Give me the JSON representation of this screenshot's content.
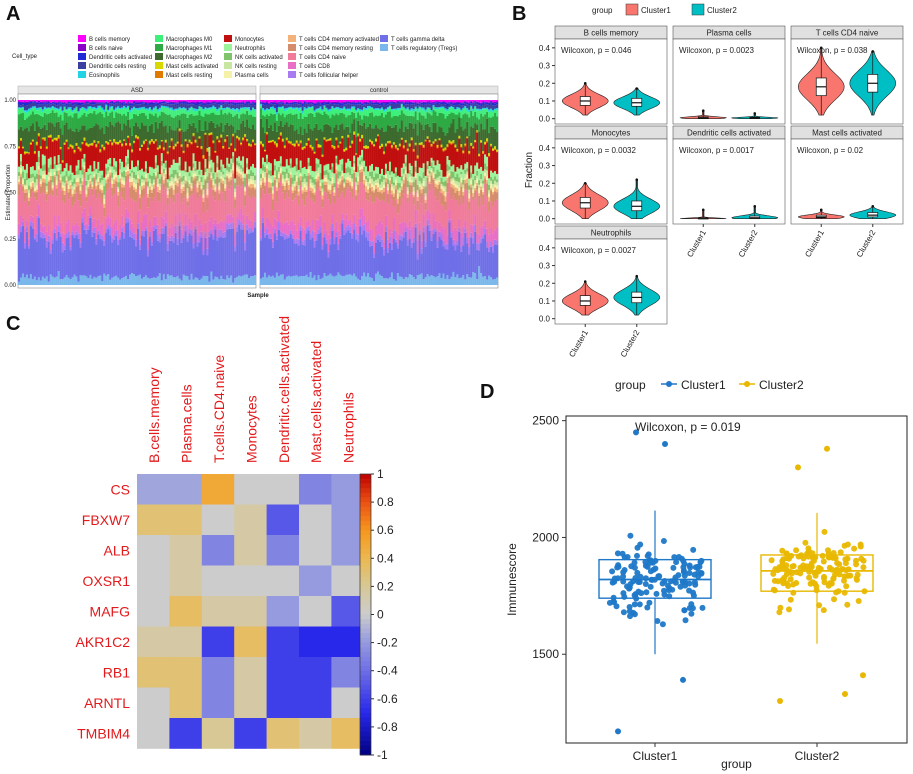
{
  "panels": {
    "a": "A",
    "b": "B",
    "c": "C",
    "d": "D"
  },
  "chart_data": [
    {
      "id": "A",
      "type": "bar",
      "subtype": "stacked-proportion",
      "xlabel": "Sample",
      "ylabel": "Estimated Proportion",
      "yticks": [
        "0.00",
        "0.25",
        "0.50",
        "0.75",
        "1.00"
      ],
      "ylim": [
        0,
        1
      ],
      "facets": [
        "ASD",
        "control"
      ],
      "legend_title": "Cell_type",
      "legend": [
        {
          "label": "B cells memory",
          "color": "#ff00ff"
        },
        {
          "label": "B cells naive",
          "color": "#8b00c9"
        },
        {
          "label": "Dendritic cells activated",
          "color": "#1f2bd6"
        },
        {
          "label": "Dendritic cells resting",
          "color": "#3a3fa0"
        },
        {
          "label": "Eosinophils",
          "color": "#22d3e6"
        },
        {
          "label": "Macrophages M0",
          "color": "#3cf07a"
        },
        {
          "label": "Macrophages M1",
          "color": "#2eaa44"
        },
        {
          "label": "Macrophages M2",
          "color": "#3d6b2f"
        },
        {
          "label": "Mast cells activated",
          "color": "#d8d800"
        },
        {
          "label": "Mast cells resting",
          "color": "#e07b00"
        },
        {
          "label": "Monocytes",
          "color": "#c10f0f"
        },
        {
          "label": "Neutrophils",
          "color": "#9bf49b"
        },
        {
          "label": "NK cells activated",
          "color": "#7fc36a"
        },
        {
          "label": "NK cells resting",
          "color": "#c7e6a0"
        },
        {
          "label": "Plasma cells",
          "color": "#f5f1a8"
        },
        {
          "label": "T cells CD4 memory activated",
          "color": "#f2b27a"
        },
        {
          "label": "T cells CD4 memory resting",
          "color": "#d58c6b"
        },
        {
          "label": "T cells CD4 naive",
          "color": "#f07b9a"
        },
        {
          "label": "T cells CD8",
          "color": "#e86ec6"
        },
        {
          "label": "T cells follicular helper",
          "color": "#a87cf0"
        },
        {
          "label": "T cells gamma delta",
          "color": "#6f6fe8"
        },
        {
          "label": "T cells regulatory (Tregs)",
          "color": "#7ab8ec"
        }
      ],
      "mean_composition": [
        0.01,
        0.005,
        0.01,
        0.02,
        0.01,
        0.03,
        0.07,
        0.09,
        0.01,
        0.005,
        0.12,
        0.04,
        0.03,
        0.02,
        0.02,
        0.02,
        0.05,
        0.16,
        0.06,
        0.03,
        0.22,
        0.05
      ]
    },
    {
      "id": "B",
      "type": "violin",
      "legend_title": "group",
      "groups": [
        "Cluster1",
        "Cluster2"
      ],
      "group_colors": [
        "#f8766d",
        "#00bfc4"
      ],
      "ylabel": "Fraction",
      "yticks": [
        "0.0",
        "0.1",
        "0.2",
        "0.3",
        "0.4"
      ],
      "ylim": [
        -0.03,
        0.45
      ],
      "facets": [
        {
          "title": "B cells memory",
          "p": "Wilcoxon, p = 0.046",
          "median": [
            0.1,
            0.09
          ],
          "q1": [
            0.075,
            0.07
          ],
          "q3": [
            0.125,
            0.115
          ],
          "min": [
            0.02,
            0.02
          ],
          "max": [
            0.2,
            0.17
          ]
        },
        {
          "title": "Plasma cells",
          "p": "Wilcoxon, p = 0.0023",
          "median": [
            0.005,
            0.004
          ],
          "q1": [
            0.002,
            0.002
          ],
          "q3": [
            0.01,
            0.008
          ],
          "min": [
            0.0,
            0.0
          ],
          "max": [
            0.045,
            0.03
          ]
        },
        {
          "title": "T cells CD4 naive",
          "p": "Wilcoxon, p = 0.038",
          "median": [
            0.18,
            0.2
          ],
          "q1": [
            0.13,
            0.15
          ],
          "q3": [
            0.23,
            0.25
          ],
          "min": [
            0.02,
            0.02
          ],
          "max": [
            0.4,
            0.38
          ]
        },
        {
          "title": "Monocytes",
          "p": "Wilcoxon, p = 0.0032",
          "median": [
            0.09,
            0.07
          ],
          "q1": [
            0.06,
            0.045
          ],
          "q3": [
            0.12,
            0.1
          ],
          "min": [
            0.0,
            0.0
          ],
          "max": [
            0.2,
            0.22
          ]
        },
        {
          "title": "Dendritic cells activated",
          "p": "Wilcoxon, p = 0.0017",
          "median": [
            0.0,
            0.005
          ],
          "q1": [
            0.0,
            0.0
          ],
          "q3": [
            0.005,
            0.015
          ],
          "min": [
            0.0,
            0.0
          ],
          "max": [
            0.05,
            0.07
          ]
        },
        {
          "title": "Mast cells activated",
          "p": "Wilcoxon, p = 0.02",
          "median": [
            0.01,
            0.02
          ],
          "q1": [
            0.005,
            0.01
          ],
          "q3": [
            0.02,
            0.035
          ],
          "min": [
            0.0,
            0.0
          ],
          "max": [
            0.05,
            0.07
          ]
        },
        {
          "title": "Neutrophils",
          "p": "Wilcoxon, p = 0.0027",
          "median": [
            0.1,
            0.12
          ],
          "q1": [
            0.075,
            0.09
          ],
          "q3": [
            0.13,
            0.15
          ],
          "min": [
            0.02,
            0.02
          ],
          "max": [
            0.21,
            0.24
          ]
        }
      ]
    },
    {
      "id": "C",
      "type": "heatmap",
      "columns": [
        "B.cells.memory",
        "Plasma.cells",
        "T.cells.CD4.naive",
        "Monocytes",
        "Dendritic.cells.activated",
        "Mast.cells.activated",
        "Neutrophils"
      ],
      "rows": [
        "CS",
        "FBXW7",
        "ALB",
        "OXSR1",
        "MAFG",
        "AKR1C2",
        "RB1",
        "ARNTL",
        "TMBIM4"
      ],
      "values": [
        [
          -0.15,
          -0.15,
          0.5,
          0,
          0,
          -0.3,
          -0.2
        ],
        [
          0.3,
          0.3,
          0,
          0.15,
          -0.5,
          0,
          -0.2
        ],
        [
          0,
          0.15,
          -0.3,
          0.15,
          -0.3,
          0,
          -0.2
        ],
        [
          0,
          0.15,
          0,
          0,
          0,
          -0.2,
          0
        ],
        [
          0,
          0.35,
          0.15,
          0.15,
          -0.2,
          0,
          -0.5
        ],
        [
          0.15,
          0.15,
          -0.6,
          0.35,
          -0.6,
          -0.7,
          -0.7
        ],
        [
          0.3,
          0.3,
          -0.3,
          0.15,
          -0.6,
          -0.6,
          -0.3
        ],
        [
          0,
          0.3,
          -0.3,
          0.15,
          -0.6,
          -0.6,
          0
        ],
        [
          0,
          -0.6,
          0.2,
          -0.6,
          0.3,
          0.15,
          0.35
        ]
      ],
      "colorbar_ticks": [
        "1",
        "0.8",
        "0.6",
        "0.4",
        "0.2",
        "0",
        "-0.2",
        "-0.4",
        "-0.6",
        "-0.8",
        "-1"
      ],
      "vlim": [
        -1,
        1
      ]
    },
    {
      "id": "D",
      "type": "box",
      "xlabel": "group",
      "ylabel": "Immunescore",
      "categories": [
        "Cluster1",
        "Cluster2"
      ],
      "colors": [
        "#1f78c8",
        "#e8b800"
      ],
      "legend_title": "group",
      "p": "Wilcoxon, p = 0.019",
      "yticks": [
        1500,
        2000,
        2500
      ],
      "ylim": [
        1120,
        2520
      ],
      "median": [
        1820,
        1857
      ],
      "q1": [
        1740,
        1770
      ],
      "q3": [
        1905,
        1925
      ],
      "whisker_low": [
        1500,
        1545
      ],
      "whisker_high": [
        2115,
        2105
      ],
      "n_points": [
        140,
        140
      ],
      "outliers": [
        [
          2400,
          2450,
          1390,
          1170
        ],
        [
          2380,
          2300,
          1330,
          1300,
          1410
        ]
      ]
    }
  ]
}
